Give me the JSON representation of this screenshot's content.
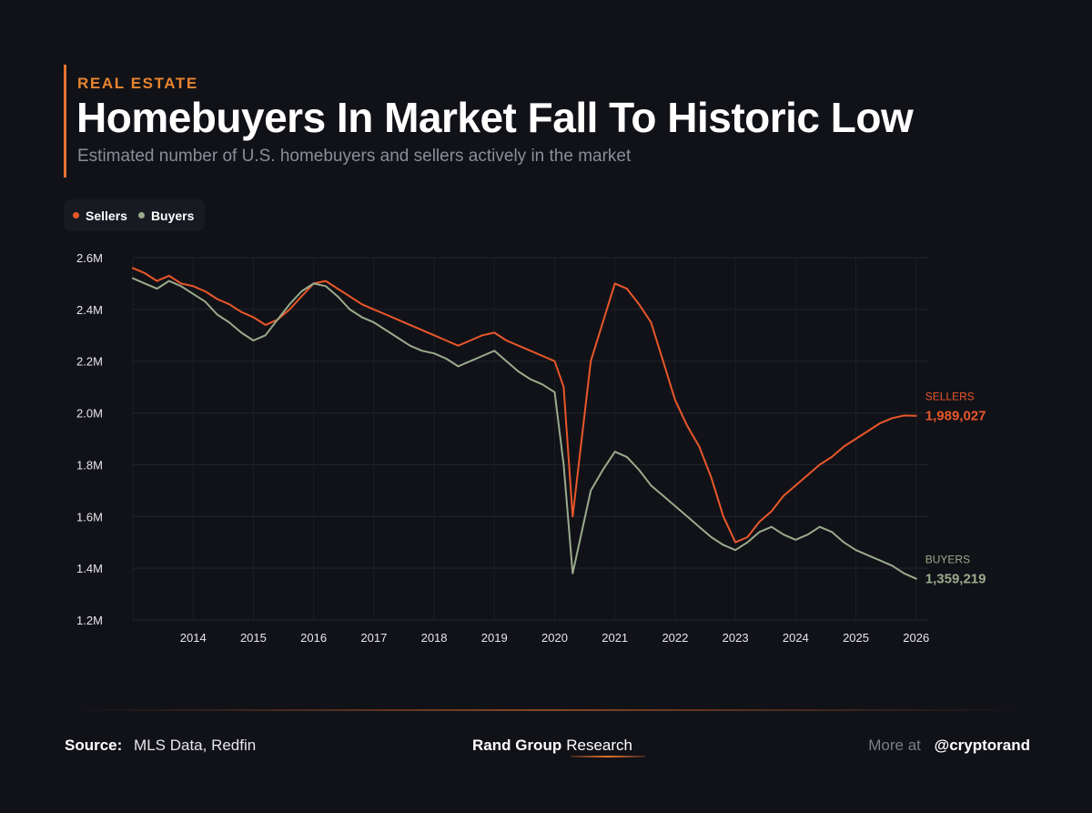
{
  "header": {
    "kicker": "REAL ESTATE",
    "title": "Homebuyers In Market Fall To Historic Low",
    "subtitle": "Estimated number of U.S. homebuyers and sellers actively in the market"
  },
  "legend": [
    {
      "label": "Sellers",
      "color": "#e8572a"
    },
    {
      "label": "Buyers",
      "color": "#9aab8c"
    }
  ],
  "chart_data": {
    "type": "line",
    "xlim": [
      2013.0,
      2026.2
    ],
    "ylim": [
      1200000,
      2600000
    ],
    "y_ticks": [
      {
        "value": 2600000,
        "label": "2.6M"
      },
      {
        "value": 2400000,
        "label": "2.4M"
      },
      {
        "value": 2200000,
        "label": "2.2M"
      },
      {
        "value": 2000000,
        "label": "2.0M"
      },
      {
        "value": 1800000,
        "label": "1.8M"
      },
      {
        "value": 1600000,
        "label": "1.6M"
      },
      {
        "value": 1400000,
        "label": "1.4M"
      },
      {
        "value": 1200000,
        "label": "1.2M"
      }
    ],
    "x_ticks": [
      "2014",
      "2015",
      "2016",
      "2017",
      "2018",
      "2019",
      "2020",
      "2021",
      "2022",
      "2023",
      "2024",
      "2025",
      "2026"
    ],
    "grid": true,
    "legend_position": "top-left",
    "series": [
      {
        "name": "Sellers",
        "color": "#e8572a",
        "end_label": "SELLERS",
        "end_value": "1,989,027",
        "points": [
          [
            2013.0,
            2560000
          ],
          [
            2013.2,
            2540000
          ],
          [
            2013.4,
            2510000
          ],
          [
            2013.6,
            2530000
          ],
          [
            2013.8,
            2500000
          ],
          [
            2014.0,
            2490000
          ],
          [
            2014.2,
            2470000
          ],
          [
            2014.4,
            2440000
          ],
          [
            2014.6,
            2420000
          ],
          [
            2014.8,
            2390000
          ],
          [
            2015.0,
            2370000
          ],
          [
            2015.2,
            2340000
          ],
          [
            2015.4,
            2360000
          ],
          [
            2015.6,
            2400000
          ],
          [
            2015.8,
            2450000
          ],
          [
            2016.0,
            2500000
          ],
          [
            2016.2,
            2510000
          ],
          [
            2016.4,
            2480000
          ],
          [
            2016.6,
            2450000
          ],
          [
            2016.8,
            2420000
          ],
          [
            2017.0,
            2400000
          ],
          [
            2017.2,
            2380000
          ],
          [
            2017.4,
            2360000
          ],
          [
            2017.6,
            2340000
          ],
          [
            2017.8,
            2320000
          ],
          [
            2018.0,
            2300000
          ],
          [
            2018.2,
            2280000
          ],
          [
            2018.4,
            2260000
          ],
          [
            2018.6,
            2280000
          ],
          [
            2018.8,
            2300000
          ],
          [
            2019.0,
            2310000
          ],
          [
            2019.2,
            2280000
          ],
          [
            2019.4,
            2260000
          ],
          [
            2019.6,
            2240000
          ],
          [
            2019.8,
            2220000
          ],
          [
            2020.0,
            2200000
          ],
          [
            2020.15,
            2100000
          ],
          [
            2020.3,
            1600000
          ],
          [
            2020.6,
            2200000
          ],
          [
            2021.0,
            2500000
          ],
          [
            2021.2,
            2480000
          ],
          [
            2021.4,
            2420000
          ],
          [
            2021.6,
            2350000
          ],
          [
            2021.8,
            2200000
          ],
          [
            2022.0,
            2050000
          ],
          [
            2022.2,
            1950000
          ],
          [
            2022.4,
            1870000
          ],
          [
            2022.6,
            1750000
          ],
          [
            2022.8,
            1600000
          ],
          [
            2023.0,
            1500000
          ],
          [
            2023.2,
            1520000
          ],
          [
            2023.4,
            1580000
          ],
          [
            2023.6,
            1620000
          ],
          [
            2023.8,
            1680000
          ],
          [
            2024.0,
            1720000
          ],
          [
            2024.2,
            1760000
          ],
          [
            2024.4,
            1800000
          ],
          [
            2024.6,
            1830000
          ],
          [
            2024.8,
            1870000
          ],
          [
            2025.0,
            1900000
          ],
          [
            2025.2,
            1930000
          ],
          [
            2025.4,
            1960000
          ],
          [
            2025.6,
            1980000
          ],
          [
            2025.8,
            1990000
          ],
          [
            2026.0,
            1989027
          ]
        ]
      },
      {
        "name": "Buyers",
        "color": "#9aab8c",
        "end_label": "BUYERS",
        "end_value": "1,359,219",
        "points": [
          [
            2013.0,
            2520000
          ],
          [
            2013.2,
            2500000
          ],
          [
            2013.4,
            2480000
          ],
          [
            2013.6,
            2510000
          ],
          [
            2013.8,
            2490000
          ],
          [
            2014.0,
            2460000
          ],
          [
            2014.2,
            2430000
          ],
          [
            2014.4,
            2380000
          ],
          [
            2014.6,
            2350000
          ],
          [
            2014.8,
            2310000
          ],
          [
            2015.0,
            2280000
          ],
          [
            2015.2,
            2300000
          ],
          [
            2015.4,
            2360000
          ],
          [
            2015.6,
            2420000
          ],
          [
            2015.8,
            2470000
          ],
          [
            2016.0,
            2500000
          ],
          [
            2016.2,
            2490000
          ],
          [
            2016.4,
            2450000
          ],
          [
            2016.6,
            2400000
          ],
          [
            2016.8,
            2370000
          ],
          [
            2017.0,
            2350000
          ],
          [
            2017.2,
            2320000
          ],
          [
            2017.4,
            2290000
          ],
          [
            2017.6,
            2260000
          ],
          [
            2017.8,
            2240000
          ],
          [
            2018.0,
            2230000
          ],
          [
            2018.2,
            2210000
          ],
          [
            2018.4,
            2180000
          ],
          [
            2018.6,
            2200000
          ],
          [
            2018.8,
            2220000
          ],
          [
            2019.0,
            2240000
          ],
          [
            2019.2,
            2200000
          ],
          [
            2019.4,
            2160000
          ],
          [
            2019.6,
            2130000
          ],
          [
            2019.8,
            2110000
          ],
          [
            2020.0,
            2080000
          ],
          [
            2020.15,
            1800000
          ],
          [
            2020.3,
            1380000
          ],
          [
            2020.6,
            1700000
          ],
          [
            2020.8,
            1780000
          ],
          [
            2021.0,
            1850000
          ],
          [
            2021.2,
            1830000
          ],
          [
            2021.4,
            1780000
          ],
          [
            2021.6,
            1720000
          ],
          [
            2021.8,
            1680000
          ],
          [
            2022.0,
            1640000
          ],
          [
            2022.2,
            1600000
          ],
          [
            2022.4,
            1560000
          ],
          [
            2022.6,
            1520000
          ],
          [
            2022.8,
            1490000
          ],
          [
            2023.0,
            1470000
          ],
          [
            2023.2,
            1500000
          ],
          [
            2023.4,
            1540000
          ],
          [
            2023.6,
            1560000
          ],
          [
            2023.8,
            1530000
          ],
          [
            2024.0,
            1510000
          ],
          [
            2024.2,
            1530000
          ],
          [
            2024.4,
            1560000
          ],
          [
            2024.6,
            1540000
          ],
          [
            2024.8,
            1500000
          ],
          [
            2025.0,
            1470000
          ],
          [
            2025.2,
            1450000
          ],
          [
            2025.4,
            1430000
          ],
          [
            2025.6,
            1410000
          ],
          [
            2025.8,
            1380000
          ],
          [
            2026.0,
            1359219
          ]
        ]
      }
    ]
  },
  "footer": {
    "source_label": "Source:",
    "source_value": "MLS Data, Redfin",
    "brand_strong": "Rand Group",
    "brand_light": "Research",
    "more_label": "More at",
    "more_handle": "@cryptorand"
  }
}
